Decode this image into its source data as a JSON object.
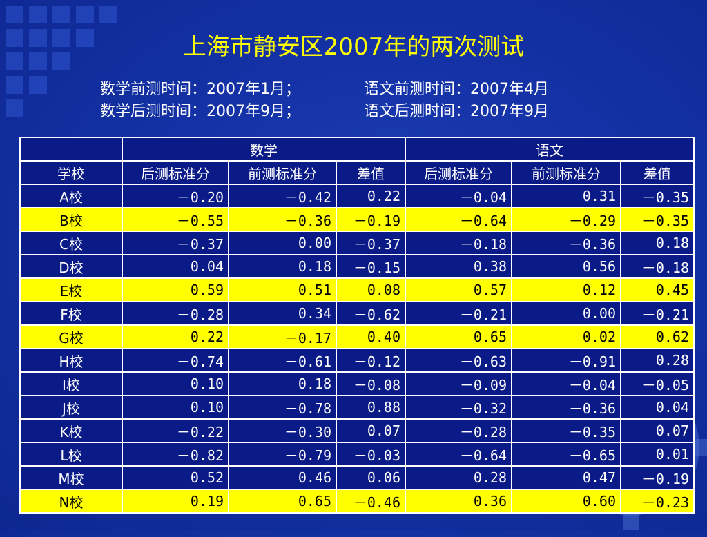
{
  "title": "上海市静安区2007年的两次测试",
  "info": {
    "math_pre": "数学前测时间：2007年1月；",
    "chinese_pre": "语文前测时间：2007年4月",
    "math_post": "数学后测时间：2007年9月；",
    "chinese_post": "语文后测时间：2007年9月"
  },
  "table": {
    "group_headers": [
      "数学",
      "语文"
    ],
    "columns": [
      "学校",
      "后测标准分",
      "前测标准分",
      "差值",
      "后测标准分",
      "前测标准分",
      "差值"
    ],
    "highlight_color": "#ffff00",
    "rows": [
      {
        "school": "A校",
        "highlight": false,
        "cells": [
          "－0.20",
          "－0.42",
          "0.22",
          "－0.04",
          "0.31",
          "－0.35"
        ]
      },
      {
        "school": "B校",
        "highlight": true,
        "cells": [
          "－0.55",
          "－0.36",
          "－0.19",
          "－0.64",
          "－0.29",
          "－0.35"
        ]
      },
      {
        "school": "C校",
        "highlight": false,
        "cells": [
          "－0.37",
          "0.00",
          "－0.37",
          "－0.18",
          "－0.36",
          "0.18"
        ]
      },
      {
        "school": "D校",
        "highlight": false,
        "cells": [
          "0.04",
          "0.18",
          "－0.15",
          "0.38",
          "0.56",
          "－0.18"
        ]
      },
      {
        "school": "E校",
        "highlight": true,
        "cells": [
          "0.59",
          "0.51",
          "0.08",
          "0.57",
          "0.12",
          "0.45"
        ]
      },
      {
        "school": "F校",
        "highlight": false,
        "cells": [
          "－0.28",
          "0.34",
          "－0.62",
          "－0.21",
          "0.00",
          "－0.21"
        ]
      },
      {
        "school": "G校",
        "highlight": true,
        "cells": [
          "0.22",
          "－0.17",
          "0.40",
          "0.65",
          "0.02",
          "0.62"
        ]
      },
      {
        "school": "H校",
        "highlight": false,
        "cells": [
          "－0.74",
          "－0.61",
          "－0.12",
          "－0.63",
          "－0.91",
          "0.28"
        ]
      },
      {
        "school": "I校",
        "highlight": false,
        "cells": [
          "0.10",
          "0.18",
          "－0.08",
          "－0.09",
          "－0.04",
          "－0.05"
        ]
      },
      {
        "school": "J校",
        "highlight": false,
        "cells": [
          "0.10",
          "－0.78",
          "0.88",
          "－0.32",
          "－0.36",
          "0.04"
        ]
      },
      {
        "school": "K校",
        "highlight": false,
        "cells": [
          "－0.22",
          "－0.30",
          "0.07",
          "－0.28",
          "－0.35",
          "0.07"
        ]
      },
      {
        "school": "L校",
        "highlight": false,
        "cells": [
          "－0.82",
          "－0.79",
          "－0.03",
          "－0.64",
          "－0.65",
          "0.01"
        ]
      },
      {
        "school": "M校",
        "highlight": false,
        "cells": [
          "0.52",
          "0.46",
          "0.06",
          "0.28",
          "0.47",
          "－0.19"
        ]
      },
      {
        "school": "N校",
        "highlight": true,
        "cells": [
          "0.19",
          "0.65",
          "－0.46",
          "0.36",
          "0.60",
          "－0.23"
        ]
      }
    ]
  }
}
